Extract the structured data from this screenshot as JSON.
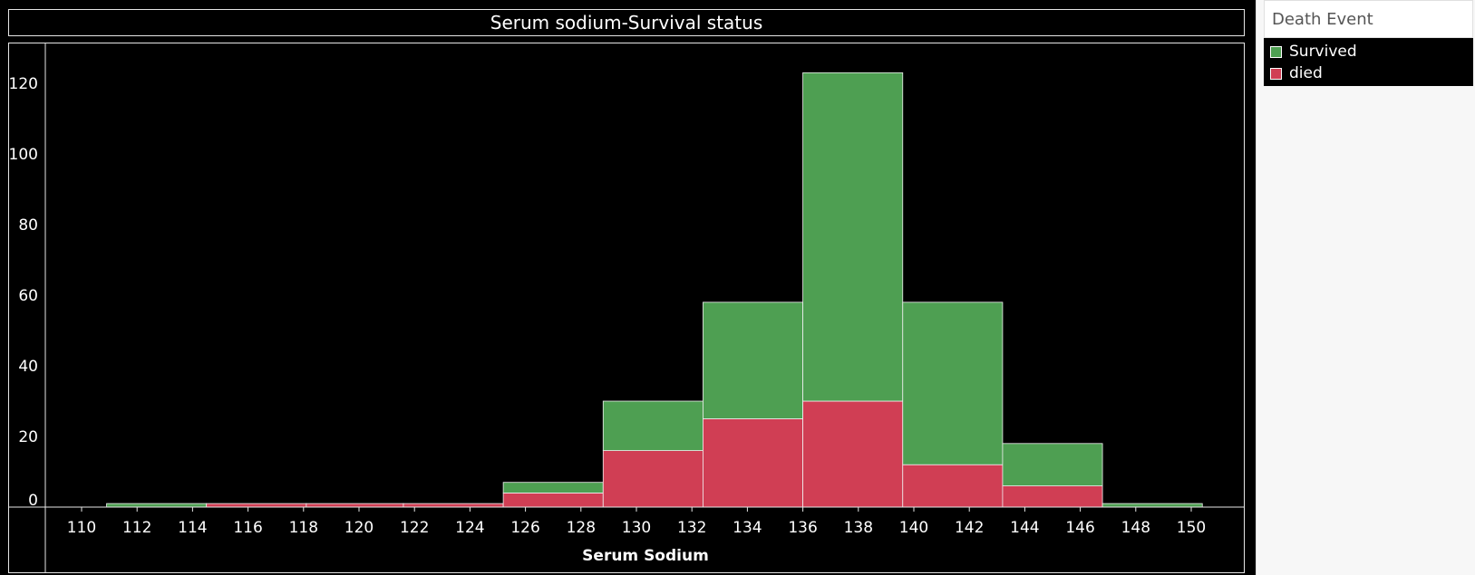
{
  "chart_data": {
    "type": "bar",
    "stacked": true,
    "title": "Serum sodium-Survival status",
    "xlabel": "Serum Sodium",
    "ylabel": "",
    "x_ticks": [
      110,
      112,
      114,
      116,
      118,
      120,
      122,
      124,
      126,
      128,
      130,
      132,
      134,
      136,
      138,
      140,
      142,
      144,
      146,
      148,
      150
    ],
    "y_ticks": [
      0,
      20,
      40,
      60,
      80,
      100,
      120
    ],
    "xlim": [
      110,
      150
    ],
    "ylim": [
      0,
      130
    ],
    "bin_edges": [
      110.9,
      114.5,
      118.1,
      121.6,
      125.2,
      128.8,
      132.4,
      136.0,
      139.6,
      143.2,
      146.8,
      150.4
    ],
    "series": [
      {
        "name": "died",
        "color": "#d03e54",
        "values": [
          0,
          1,
          1,
          1,
          4,
          16,
          25,
          30,
          12,
          6,
          0
        ]
      },
      {
        "name": "Survived",
        "color": "#4e9f52",
        "values": [
          1,
          0,
          0,
          0,
          3,
          14,
          33,
          93,
          46,
          12,
          1
        ]
      }
    ],
    "grid": false,
    "legend_position": "right"
  },
  "legend": {
    "title": "Death Event",
    "items": [
      {
        "label": "Survived",
        "color": "#4e9f52"
      },
      {
        "label": "died",
        "color": "#d03e54"
      }
    ]
  }
}
